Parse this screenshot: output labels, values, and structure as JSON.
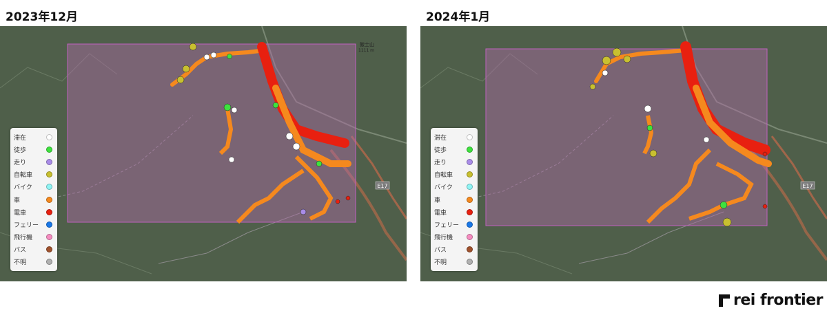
{
  "panels": [
    {
      "title": "2023年12月"
    },
    {
      "title": "2024年1月"
    }
  ],
  "map_labels": {
    "highway": "E17",
    "peak": "飯士山",
    "peak_elev": "1111 m"
  },
  "legend": [
    {
      "label": "滞在",
      "color": "#ffffff"
    },
    {
      "label": "徒歩",
      "color": "#3ee23e"
    },
    {
      "label": "走り",
      "color": "#a98ce8"
    },
    {
      "label": "自転車",
      "color": "#c8c030"
    },
    {
      "label": "バイク",
      "color": "#8ff4f4"
    },
    {
      "label": "車",
      "color": "#f5891e"
    },
    {
      "label": "電車",
      "color": "#e82010"
    },
    {
      "label": "フェリー",
      "color": "#1a78e8"
    },
    {
      "label": "飛行機",
      "color": "#f58cc0"
    },
    {
      "label": "バス",
      "color": "#a0522d"
    },
    {
      "label": "不明",
      "color": "#b0b0b0"
    }
  ],
  "brand": {
    "name": "rei frontier"
  }
}
